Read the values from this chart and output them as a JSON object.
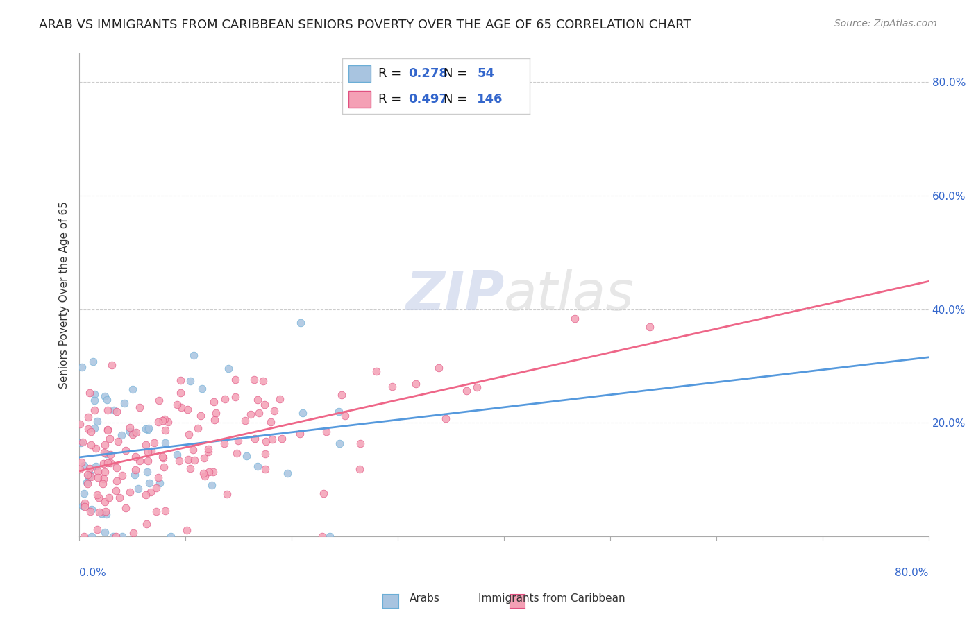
{
  "title": "ARAB VS IMMIGRANTS FROM CARIBBEAN SENIORS POVERTY OVER THE AGE OF 65 CORRELATION CHART",
  "source": "Source: ZipAtlas.com",
  "ylabel": "Seniors Poverty Over the Age of 65",
  "xlim": [
    0,
    0.8
  ],
  "ylim": [
    0,
    0.85
  ],
  "arab_color": "#a8c4e0",
  "arab_color_dark": "#6baed6",
  "carib_color": "#f4a0b5",
  "carib_color_dark": "#e05080",
  "arab_R": 0.278,
  "arab_N": 54,
  "carib_R": 0.497,
  "carib_N": 146,
  "arab_seed": 42,
  "carib_seed": 99,
  "watermark_zip": "ZIP",
  "watermark_atlas": "atlas",
  "title_fontsize": 13,
  "source_fontsize": 10,
  "label_color": "#3366cc",
  "background_color": "#ffffff",
  "grid_color": "#cccccc",
  "arab_line_color": "#5599dd",
  "carib_line_color": "#ee6688"
}
